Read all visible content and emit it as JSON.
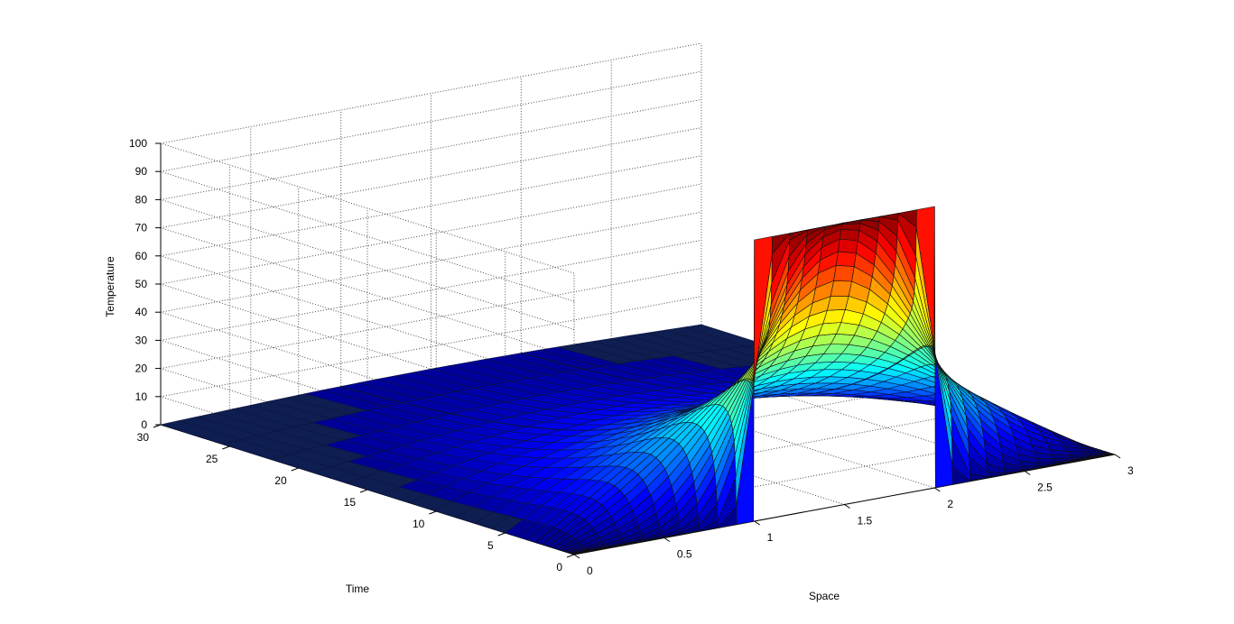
{
  "chart_data": {
    "type": "surface",
    "title": "",
    "xlabel": "Space",
    "ylabel": "Time",
    "zlabel": "Temperature",
    "xlim": [
      0,
      3
    ],
    "ylim": [
      0,
      30
    ],
    "zlim": [
      0,
      100
    ],
    "x_ticks": [
      0,
      0.5,
      1,
      1.5,
      2,
      2.5,
      3
    ],
    "x_tick_labels": [
      "0",
      "0.5",
      "1",
      "1.5",
      "2",
      "2.5",
      "3"
    ],
    "y_ticks": [
      0,
      5,
      10,
      15,
      20,
      25,
      30
    ],
    "y_tick_labels": [
      "0",
      "5",
      "10",
      "15",
      "20",
      "25",
      "30"
    ],
    "z_ticks": [
      0,
      10,
      20,
      30,
      40,
      50,
      60,
      70,
      80,
      90,
      100
    ],
    "z_tick_labels": [
      "0",
      "10",
      "20",
      "30",
      "40",
      "50",
      "60",
      "70",
      "80",
      "90",
      "100"
    ],
    "grid": true,
    "colormap": "jet",
    "initial_condition": {
      "hot_region": [
        1,
        2
      ],
      "hot_value": 100,
      "cold_value": 0
    },
    "boundary_condition": {
      "x0": 0,
      "x3": 0
    },
    "profile_samples": [
      {
        "time": 0,
        "x": [
          0,
          0.95,
          1,
          2,
          2.05,
          3
        ],
        "temperature": [
          0,
          0,
          100,
          100,
          0,
          0
        ]
      },
      {
        "time": 0.1,
        "x": [
          0,
          0.5,
          1,
          1.5,
          2,
          2.5,
          3
        ],
        "temperature": [
          0,
          10,
          50,
          70,
          50,
          20,
          0
        ]
      },
      {
        "time": 0.5,
        "x": [
          0,
          0.5,
          1,
          1.5,
          2,
          2.5,
          3
        ],
        "temperature": [
          0,
          15,
          40,
          50,
          40,
          18,
          0
        ]
      },
      {
        "time": 2,
        "x": [
          0,
          0.5,
          1,
          1.5,
          2,
          2.5,
          3
        ],
        "temperature": [
          0,
          12,
          25,
          30,
          25,
          12,
          0
        ]
      },
      {
        "time": 30,
        "x": [
          0,
          1.5,
          3
        ],
        "temperature": [
          0,
          0,
          0
        ]
      }
    ]
  }
}
